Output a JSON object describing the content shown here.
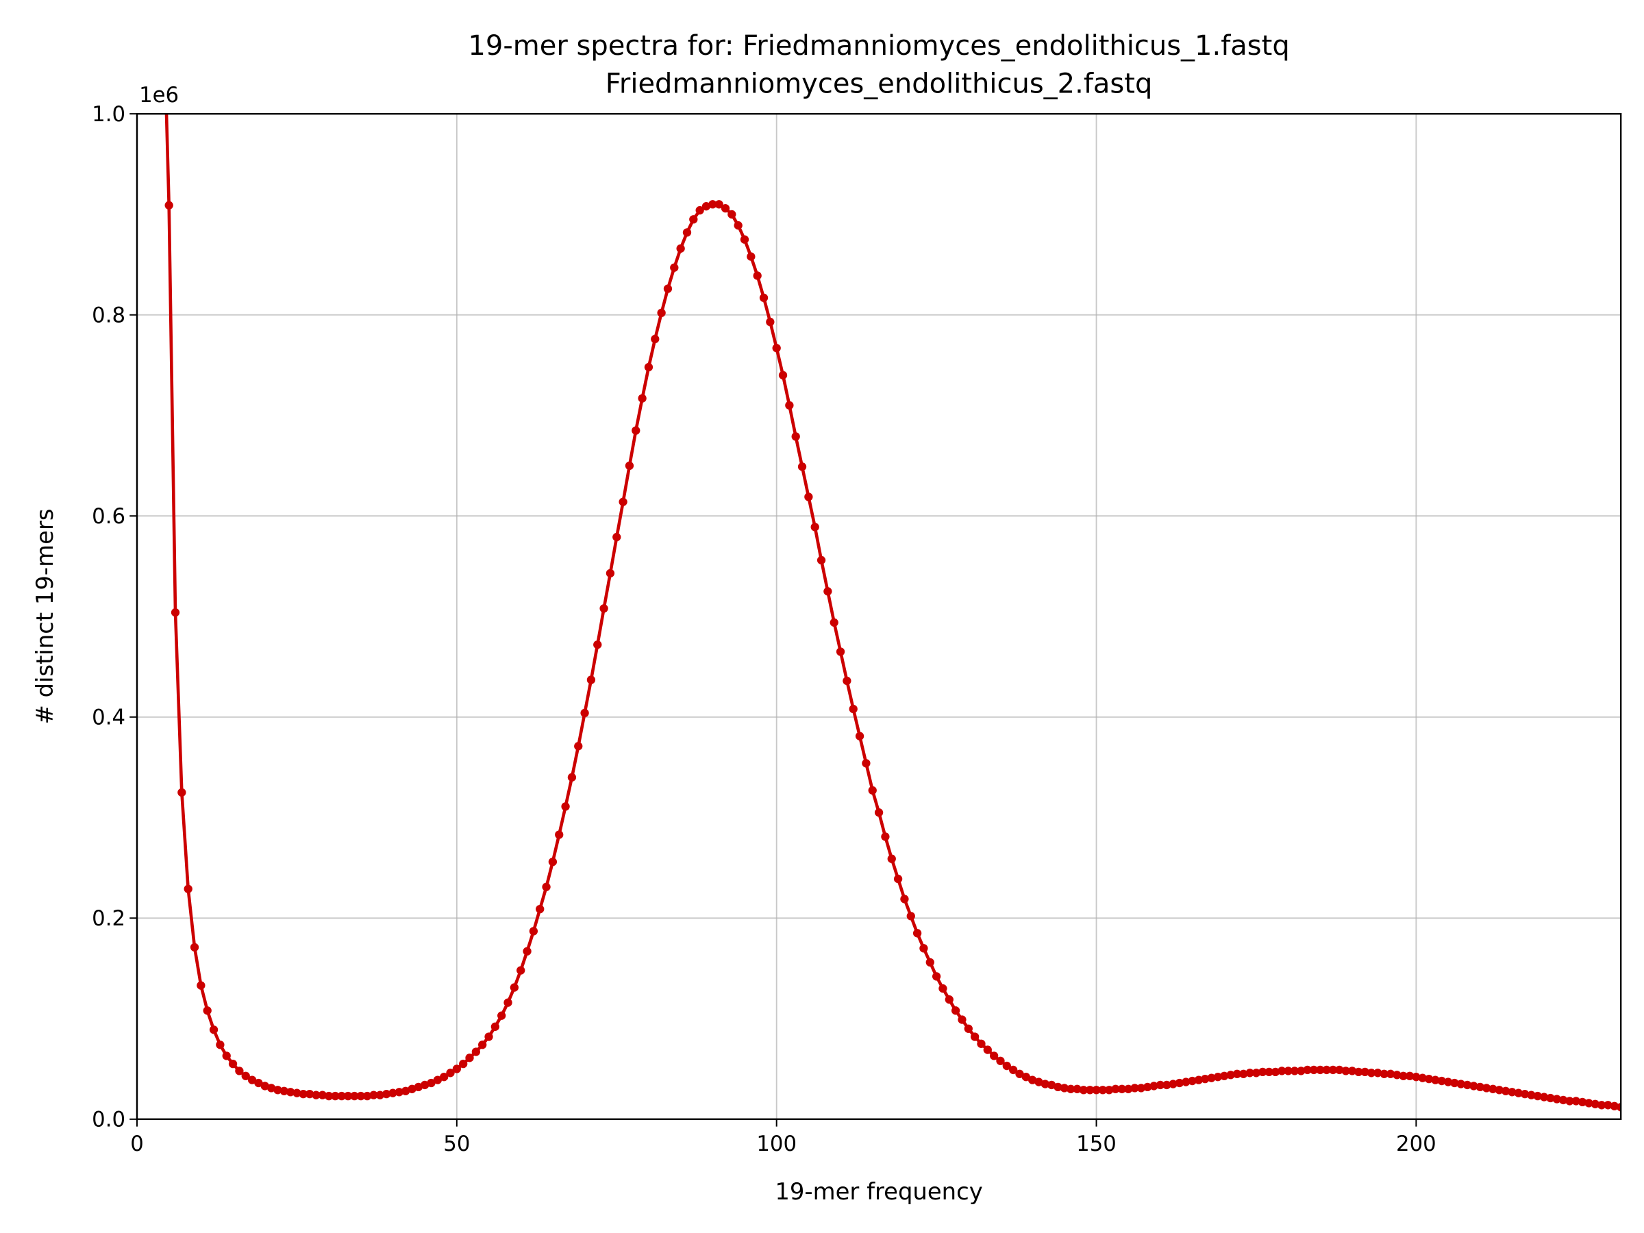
{
  "chart_data": {
    "type": "line",
    "title": [
      "19-mer spectra for: Friedmanniomyces_endolithicus_1.fastq",
      "Friedmanniomyces_endolithicus_2.fastq"
    ],
    "xlabel": "19-mer frequency",
    "ylabel": "# distinct 19-mers",
    "y_offset_label": "1e6",
    "xlim": [
      0,
      232
    ],
    "xticks": [
      0,
      50,
      100,
      150,
      200
    ],
    "ylim": [
      0,
      1000000
    ],
    "yticks": [
      {
        "value": 0,
        "label": "0.0"
      },
      {
        "value": 200000,
        "label": "0.2"
      },
      {
        "value": 400000,
        "label": "0.4"
      },
      {
        "value": 600000,
        "label": "0.6"
      },
      {
        "value": 800000,
        "label": "0.8"
      },
      {
        "value": 1000000,
        "label": "1.0"
      }
    ],
    "grid": true,
    "series": [
      {
        "color": "#cc0000",
        "x": [
          4,
          5,
          6,
          7,
          8,
          9,
          10,
          11,
          12,
          13,
          14,
          15,
          16,
          17,
          18,
          19,
          20,
          21,
          22,
          23,
          24,
          25,
          26,
          27,
          28,
          29,
          30,
          31,
          32,
          33,
          34,
          35,
          36,
          37,
          38,
          39,
          40,
          41,
          42,
          43,
          44,
          45,
          46,
          47,
          48,
          49,
          50,
          51,
          52,
          53,
          54,
          55,
          56,
          57,
          58,
          59,
          60,
          61,
          62,
          63,
          64,
          65,
          66,
          67,
          68,
          69,
          70,
          71,
          72,
          73,
          74,
          75,
          76,
          77,
          78,
          79,
          80,
          81,
          82,
          83,
          84,
          85,
          86,
          87,
          88,
          89,
          90,
          91,
          92,
          93,
          94,
          95,
          96,
          97,
          98,
          99,
          100,
          101,
          102,
          103,
          104,
          105,
          106,
          107,
          108,
          109,
          110,
          111,
          112,
          113,
          114,
          115,
          116,
          117,
          118,
          119,
          120,
          121,
          122,
          123,
          124,
          125,
          126,
          127,
          128,
          129,
          130,
          131,
          132,
          133,
          134,
          135,
          136,
          137,
          138,
          139,
          140,
          141,
          142,
          143,
          144,
          145,
          146,
          147,
          148,
          149,
          150,
          151,
          152,
          153,
          154,
          155,
          156,
          157,
          158,
          159,
          160,
          161,
          162,
          163,
          164,
          165,
          166,
          167,
          168,
          169,
          170,
          171,
          172,
          173,
          174,
          175,
          176,
          177,
          178,
          179,
          180,
          181,
          182,
          183,
          184,
          185,
          186,
          187,
          188,
          189,
          190,
          191,
          192,
          193,
          194,
          195,
          196,
          197,
          198,
          199,
          200,
          201,
          202,
          203,
          204,
          205,
          206,
          207,
          208,
          209,
          210,
          211,
          212,
          213,
          214,
          215,
          216,
          217,
          218,
          219,
          220,
          221,
          222,
          223,
          224,
          225,
          226,
          227,
          228,
          229,
          230,
          231,
          232
        ],
        "values": [
          1140000,
          909000,
          504000,
          325000,
          229000,
          171000,
          133000,
          108000,
          89000,
          74000,
          63000,
          55000,
          48000,
          43000,
          39000,
          36000,
          33000,
          31000,
          29000,
          28000,
          27000,
          26000,
          25000,
          25000,
          24000,
          24000,
          23000,
          23000,
          23000,
          23000,
          23000,
          23000,
          23000,
          24000,
          24000,
          25000,
          26000,
          27000,
          28000,
          30000,
          32000,
          34000,
          36000,
          39000,
          42000,
          46000,
          50000,
          55000,
          61000,
          67000,
          74000,
          82000,
          92000,
          103000,
          116000,
          131000,
          148000,
          167000,
          187000,
          209000,
          231000,
          256000,
          283000,
          311000,
          340000,
          371000,
          404000,
          437000,
          472000,
          508000,
          543000,
          579000,
          614000,
          650000,
          685000,
          717000,
          748000,
          776000,
          802000,
          826000,
          847000,
          866000,
          882000,
          895000,
          904000,
          908000,
          910000,
          910000,
          906000,
          900000,
          889000,
          875000,
          858000,
          839000,
          817000,
          793000,
          767000,
          740000,
          710000,
          679000,
          649000,
          619000,
          589000,
          556000,
          525000,
          494000,
          465000,
          436000,
          408000,
          381000,
          354000,
          327000,
          305000,
          281000,
          259000,
          239000,
          219000,
          202000,
          185000,
          170000,
          156000,
          142000,
          130000,
          119000,
          108000,
          99000,
          90000,
          82000,
          75000,
          69000,
          63000,
          58000,
          53000,
          49000,
          45000,
          42000,
          39000,
          37000,
          35000,
          34000,
          32000,
          31000,
          30000,
          30000,
          29000,
          29000,
          29000,
          29000,
          29000,
          30000,
          30000,
          30000,
          31000,
          31000,
          32000,
          33000,
          34000,
          34000,
          35000,
          36000,
          37000,
          38000,
          39000,
          40000,
          41000,
          42000,
          43000,
          44000,
          45000,
          45000,
          46000,
          46000,
          47000,
          47000,
          47000,
          48000,
          48000,
          48000,
          48000,
          49000,
          49000,
          49000,
          49000,
          49000,
          49000,
          48000,
          48000,
          47000,
          47000,
          46000,
          46000,
          45000,
          45000,
          44000,
          43000,
          43000,
          42000,
          41000,
          40000,
          39000,
          38000,
          37000,
          36000,
          35000,
          34000,
          33000,
          32000,
          31000,
          30000,
          29000,
          28000,
          27000,
          26000,
          25000,
          24000,
          23000,
          22000,
          21000,
          20000,
          19000,
          18000,
          18000,
          17000,
          16000,
          15000,
          14000,
          14000,
          13000,
          12000
        ]
      }
    ]
  }
}
